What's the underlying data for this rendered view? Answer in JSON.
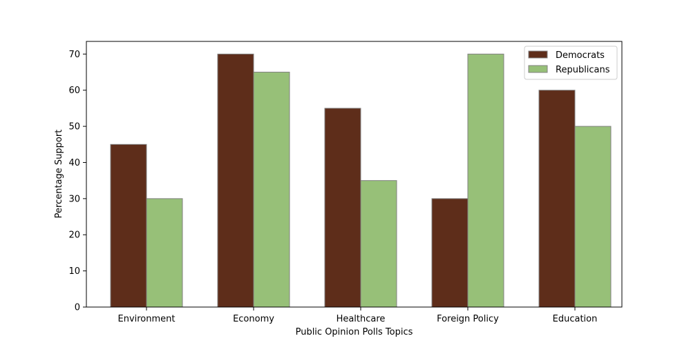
{
  "chart_data": {
    "type": "bar",
    "title": "",
    "xlabel": "Public Opinion Polls Topics",
    "ylabel": "Percentage Support",
    "categories": [
      "Environment",
      "Economy",
      "Healthcare",
      "Foreign Policy",
      "Education"
    ],
    "series": [
      {
        "name": "Democrats",
        "values": [
          45,
          70,
          55,
          30,
          60
        ],
        "color": "#5e2d1a"
      },
      {
        "name": "Republicans",
        "values": [
          30,
          65,
          35,
          70,
          50
        ],
        "color": "#97c078"
      }
    ],
    "ylim": [
      0,
      73.5
    ],
    "yticks": [
      0,
      10,
      20,
      30,
      40,
      50,
      60,
      70
    ],
    "grid": false,
    "legend_position": "top-right",
    "bar_edge_color": "#808080"
  }
}
